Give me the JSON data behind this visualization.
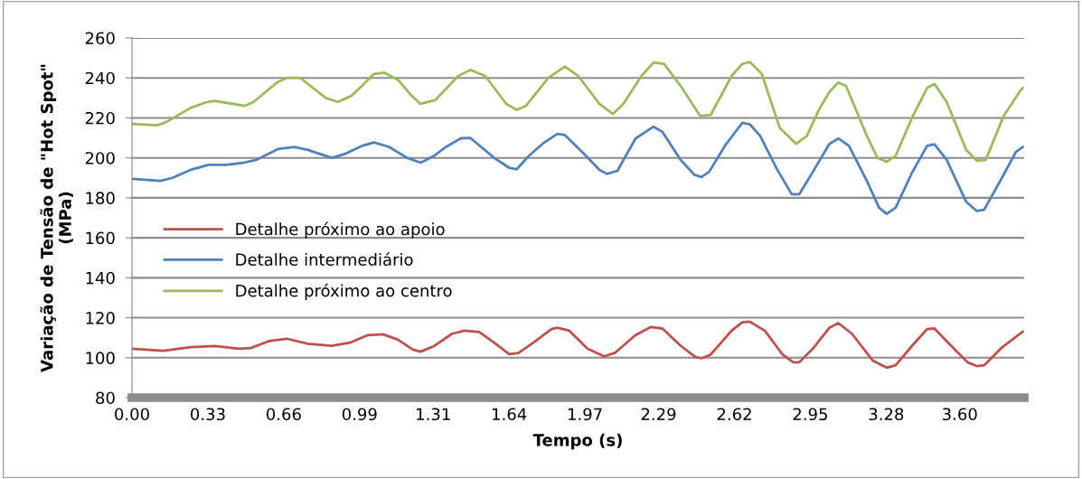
{
  "chart_data": {
    "type": "line",
    "xlabel": "Tempo (s)",
    "ylabel": "Variação de Tensão de \"Hot Spot\"\n(MPa)",
    "xlim": [
      0,
      3.88
    ],
    "xticks": [
      {
        "value": 0,
        "label": "0.00"
      },
      0.33,
      0.66,
      0.99,
      1.31,
      1.64,
      1.97,
      2.29,
      2.62,
      2.95,
      3.28,
      {
        "value": 3.6,
        "label": "3.60"
      }
    ],
    "ylim": [
      80,
      260
    ],
    "yticks": [
      80,
      100,
      120,
      140,
      160,
      180,
      200,
      220,
      240,
      260
    ],
    "grid": "y",
    "legend": "left",
    "marker": "none",
    "line_style": "solid",
    "series": [
      {
        "name": "Detalhe próximo ao apoio",
        "color": "#c0504d",
        "x": [
          0,
          0.137,
          0.255,
          0.36,
          0.464,
          0.516,
          0.595,
          0.673,
          0.765,
          0.869,
          0.948,
          1.026,
          1.092,
          1.157,
          1.222,
          1.255,
          1.314,
          1.392,
          1.445,
          1.51,
          1.575,
          1.641,
          1.68,
          1.746,
          1.824,
          1.85,
          1.902,
          1.981,
          2.053,
          2.099,
          2.19,
          2.255,
          2.307,
          2.386,
          2.451,
          2.477,
          2.516,
          2.608,
          2.654,
          2.687,
          2.752,
          2.83,
          2.876,
          2.902,
          2.961,
          3.033,
          3.072,
          3.131,
          3.222,
          3.282,
          3.321,
          3.399,
          3.458,
          3.49,
          3.562,
          3.634,
          3.674,
          3.706,
          3.785,
          3.874
        ],
        "values": [
          104.5,
          103.5,
          105.3,
          105.8,
          104.5,
          104.8,
          108.3,
          109.5,
          107,
          106,
          107.5,
          111.3,
          111.7,
          109,
          104,
          103,
          105.8,
          112,
          113.5,
          112.8,
          107.5,
          101.8,
          102.3,
          107.5,
          114.3,
          115,
          113.5,
          104.5,
          100.7,
          102.3,
          111.3,
          115.3,
          114.6,
          106,
          100.3,
          99.7,
          101.5,
          113.5,
          117.7,
          118,
          113.5,
          101.5,
          97.7,
          97.7,
          104.5,
          115,
          117.3,
          112,
          98.5,
          95,
          96.2,
          106.8,
          114.3,
          114.6,
          106,
          97.7,
          95.8,
          96.2,
          105.3,
          113
        ]
      },
      {
        "name": "Detalhe intermediário",
        "color": "#4f81bd",
        "x": [
          0,
          0.124,
          0.176,
          0.255,
          0.333,
          0.412,
          0.49,
          0.542,
          0.634,
          0.706,
          0.765,
          0.869,
          0.922,
          1.0,
          1.052,
          1.118,
          1.196,
          1.255,
          1.314,
          1.366,
          1.431,
          1.471,
          1.575,
          1.641,
          1.673,
          1.726,
          1.785,
          1.85,
          1.883,
          1.968,
          2.033,
          2.066,
          2.111,
          2.19,
          2.268,
          2.307,
          2.386,
          2.445,
          2.477,
          2.51,
          2.582,
          2.654,
          2.687,
          2.732,
          2.804,
          2.869,
          2.902,
          2.961,
          3.033,
          3.072,
          3.118,
          3.196,
          3.249,
          3.282,
          3.321,
          3.392,
          3.458,
          3.49,
          3.543,
          3.628,
          3.674,
          3.706,
          3.791,
          3.844,
          3.874
        ],
        "values": [
          189.5,
          188.5,
          190,
          194,
          196.5,
          196.5,
          197.7,
          199,
          204.4,
          205.4,
          204,
          200,
          201.8,
          206,
          207.7,
          205.5,
          200,
          197.6,
          201,
          205.5,
          209.8,
          210,
          200,
          195,
          194.3,
          201,
          207,
          212,
          211.4,
          201.8,
          194,
          192,
          193.5,
          209.7,
          215.6,
          213,
          199,
          191.6,
          190.4,
          193,
          206.6,
          217.5,
          216.8,
          211,
          194.6,
          181.8,
          181.8,
          193,
          207,
          209.7,
          206,
          188.5,
          175,
          172,
          175,
          192.5,
          206,
          206.8,
          199,
          178,
          173.4,
          174,
          191.6,
          203,
          205.4
        ]
      },
      {
        "name": "Detalhe próximo ao centro",
        "color": "#9bbb59",
        "x": [
          0,
          0.111,
          0.15,
          0.255,
          0.327,
          0.36,
          0.438,
          0.49,
          0.529,
          0.634,
          0.673,
          0.732,
          0.843,
          0.895,
          0.954,
          1.0,
          1.052,
          1.098,
          1.157,
          1.209,
          1.255,
          1.32,
          1.419,
          1.471,
          1.536,
          1.628,
          1.673,
          1.713,
          1.811,
          1.883,
          1.941,
          2.033,
          2.092,
          2.137,
          2.216,
          2.268,
          2.314,
          2.386,
          2.471,
          2.517,
          2.608,
          2.654,
          2.687,
          2.739,
          2.817,
          2.889,
          2.935,
          2.987,
          3.033,
          3.072,
          3.105,
          3.196,
          3.242,
          3.282,
          3.321,
          3.392,
          3.458,
          3.49,
          3.543,
          3.628,
          3.674,
          3.713,
          3.791,
          3.863,
          3.874
        ],
        "values": [
          217,
          216.3,
          218,
          225,
          228,
          228.5,
          227,
          226,
          228,
          238,
          240,
          240,
          230,
          228,
          231,
          236,
          242,
          242.6,
          239,
          232,
          227,
          229,
          241,
          244,
          241,
          227,
          224,
          226,
          240,
          245.7,
          241,
          227,
          222,
          227,
          241,
          247.7,
          247,
          236,
          221,
          221.5,
          241,
          247,
          248,
          242,
          215,
          207,
          211,
          224,
          233,
          237.7,
          236,
          211,
          200,
          198,
          201,
          220,
          235,
          237,
          228,
          204,
          198.6,
          199,
          221,
          233.5,
          235
        ]
      }
    ]
  }
}
